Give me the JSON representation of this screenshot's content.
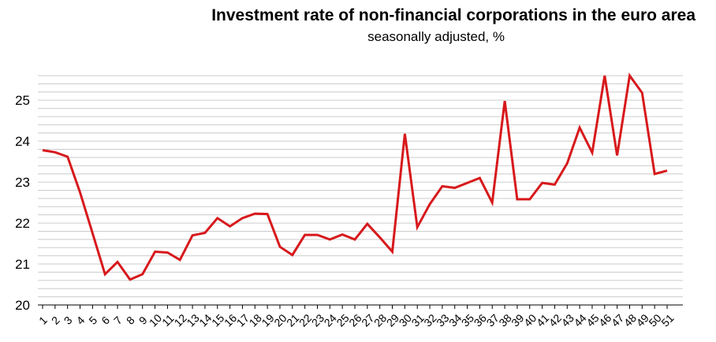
{
  "chart_data": {
    "type": "line",
    "title": "Investment rate of non-financial corporations in the euro area",
    "subtitle": "seasonally adjusted, %",
    "xlabel": "",
    "ylabel": "",
    "ylim": [
      20,
      25.6
    ],
    "yticks": [
      20,
      21,
      22,
      23,
      24,
      25
    ],
    "grid": true,
    "legend": "none",
    "line_color": "#d7191c",
    "grid_color": "#cccccc",
    "x": [
      1,
      2,
      3,
      4,
      5,
      6,
      7,
      8,
      9,
      10,
      11,
      12,
      13,
      14,
      15,
      16,
      17,
      18,
      19,
      20,
      21,
      22,
      23,
      24,
      25,
      26,
      27,
      28,
      29,
      30,
      31,
      32,
      33,
      34,
      35,
      36,
      37,
      38,
      39,
      40,
      41,
      42,
      43,
      44,
      45,
      46,
      47,
      48,
      49,
      50,
      51
    ],
    "series": [
      {
        "values": [
          23.78,
          23.73,
          23.62,
          22.75,
          21.75,
          20.75,
          21.05,
          20.62,
          20.75,
          21.3,
          21.28,
          21.1,
          21.7,
          21.76,
          22.12,
          21.92,
          22.12,
          22.23,
          22.22,
          21.42,
          21.22,
          21.71,
          21.71,
          21.6,
          21.72,
          21.6,
          21.98,
          21.65,
          21.3,
          24.18,
          21.9,
          22.46,
          22.9,
          22.86,
          22.98,
          23.1,
          22.5,
          24.98,
          22.58,
          22.58,
          22.98,
          22.94,
          23.46,
          24.33,
          23.72,
          25.6,
          23.65,
          25.6,
          25.18,
          23.2,
          23.28
        ]
      }
    ]
  }
}
